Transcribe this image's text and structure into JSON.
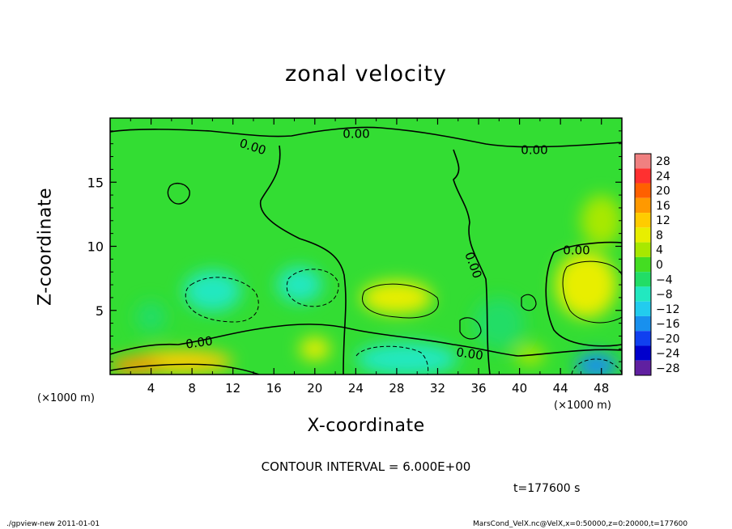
{
  "header": {
    "title": "zonal velocity"
  },
  "footer": {
    "left": "./gpview-new   2011-01-01",
    "right": "MarsCond_VelX.nc@VelX,x=0:50000,z=0:20000,t=177600"
  },
  "annotations": {
    "contour_interval": "CONTOUR INTERVAL = 6.000E+00",
    "time": "t=177600  s"
  },
  "colors": {
    "background_field": "#33dd33",
    "contour_line": "#000000",
    "axis": "#000000"
  },
  "chart_data": {
    "type": "heatmap",
    "title": "zonal velocity",
    "xlabel": "X-coordinate",
    "ylabel": "Z-coordinate",
    "x_unit_label": "(×1000 m)",
    "xlim": [
      0,
      50
    ],
    "ylim": [
      0,
      20
    ],
    "x_ticks": [
      4,
      8,
      12,
      16,
      20,
      24,
      28,
      32,
      36,
      40,
      44,
      48
    ],
    "y_ticks": [
      5,
      10,
      15
    ],
    "contour_interval": 6,
    "contour_labels": [
      "0.00",
      "0.00",
      "0.00",
      "0.00",
      "0.00",
      "0.00",
      "0.00"
    ],
    "colorbar": {
      "levels": [
        28,
        24,
        20,
        16,
        12,
        8,
        4,
        0,
        -4,
        -8,
        -12,
        -16,
        -20,
        -24,
        -28
      ],
      "colors": [
        "#f08080",
        "#ff3030",
        "#ff6000",
        "#ff9900",
        "#ffcc00",
        "#e8ee00",
        "#a8e800",
        "#44dd22",
        "#22dd66",
        "#22e8c0",
        "#22ccee",
        "#1890ee",
        "#1040f0",
        "#0000cc",
        "#6020a0"
      ]
    },
    "regions": [
      {
        "x": 18.5,
        "z": 7,
        "value": -10,
        "rx": 2.2,
        "rz": 1.4
      },
      {
        "x": 10,
        "z": 6.5,
        "value": -7,
        "rx": 2.8,
        "rz": 1.6
      },
      {
        "x": 4,
        "z": 4.5,
        "value": -5,
        "rx": 1.5,
        "rz": 1.2
      },
      {
        "x": 28,
        "z": 6,
        "value": 7,
        "rx": 3.5,
        "rz": 1.3
      },
      {
        "x": 46.5,
        "z": 7,
        "value": 9,
        "rx": 3,
        "rz": 2.6
      },
      {
        "x": 7,
        "z": 1,
        "value": 13,
        "rx": 5,
        "rz": 0.9
      },
      {
        "x": 2.5,
        "z": 0.7,
        "value": 15,
        "rx": 2.5,
        "rz": 0.7
      },
      {
        "x": 29,
        "z": 1.2,
        "value": -8,
        "rx": 5,
        "rz": 1.3
      },
      {
        "x": 47.5,
        "z": 0.7,
        "value": -15,
        "rx": 2,
        "rz": 1
      },
      {
        "x": 38,
        "z": 4,
        "value": -6,
        "rx": 2.5,
        "rz": 2
      },
      {
        "x": 20,
        "z": 2,
        "value": 6,
        "rx": 1.5,
        "rz": 0.9
      },
      {
        "x": 41,
        "z": 1.5,
        "value": 5,
        "rx": 1.5,
        "rz": 0.8
      },
      {
        "x": 48,
        "z": 12,
        "value": 5,
        "rx": 2,
        "rz": 2
      }
    ]
  }
}
